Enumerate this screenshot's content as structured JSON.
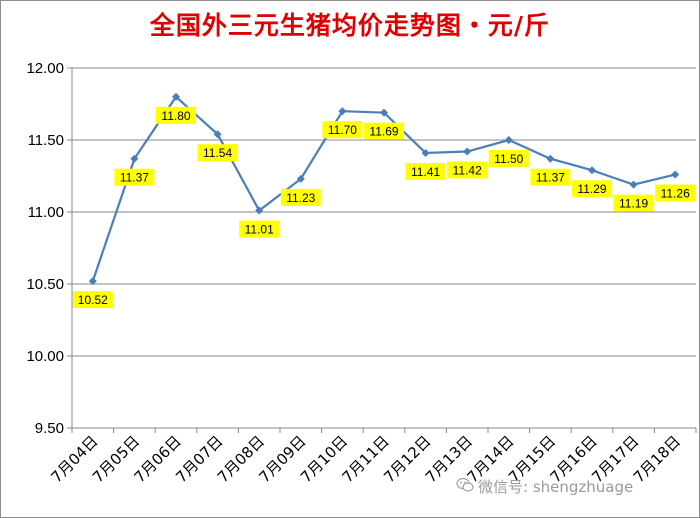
{
  "chart_data": {
    "type": "line",
    "title": "全国外三元生猪均价走势图・元/斤",
    "categories": [
      "7月04日",
      "7月05日",
      "7月06日",
      "7月07日",
      "7月08日",
      "7月09日",
      "7月10日",
      "7月11日",
      "7月12日",
      "7月13日",
      "7月14日",
      "7月15日",
      "7月16日",
      "7月17日",
      "7月18日"
    ],
    "series": [
      {
        "values": [
          10.52,
          11.37,
          11.8,
          11.54,
          11.01,
          11.23,
          11.7,
          11.69,
          11.41,
          11.42,
          11.5,
          11.37,
          11.29,
          11.19,
          11.26
        ]
      }
    ],
    "data_labels": [
      "10.52",
      "11.37",
      "11.80",
      "11.54",
      "11.01",
      "11.23",
      "11.70",
      "11.69",
      "11.41",
      "11.42",
      "11.50",
      "11.37",
      "11.29",
      "11.19",
      "11.26"
    ],
    "ylim": [
      9.5,
      12.0
    ],
    "yticks": [
      "9.50",
      "10.00",
      "10.50",
      "11.00",
      "11.50",
      "12.00"
    ],
    "xlabel": "",
    "ylabel": "",
    "grid": true,
    "legend": "none",
    "colors": {
      "line": "#4a7ebb",
      "label_bg": "#ffff00",
      "title": "#e00000",
      "grid": "#888888"
    }
  },
  "watermark": {
    "text": "微信号: shengzhuage"
  }
}
